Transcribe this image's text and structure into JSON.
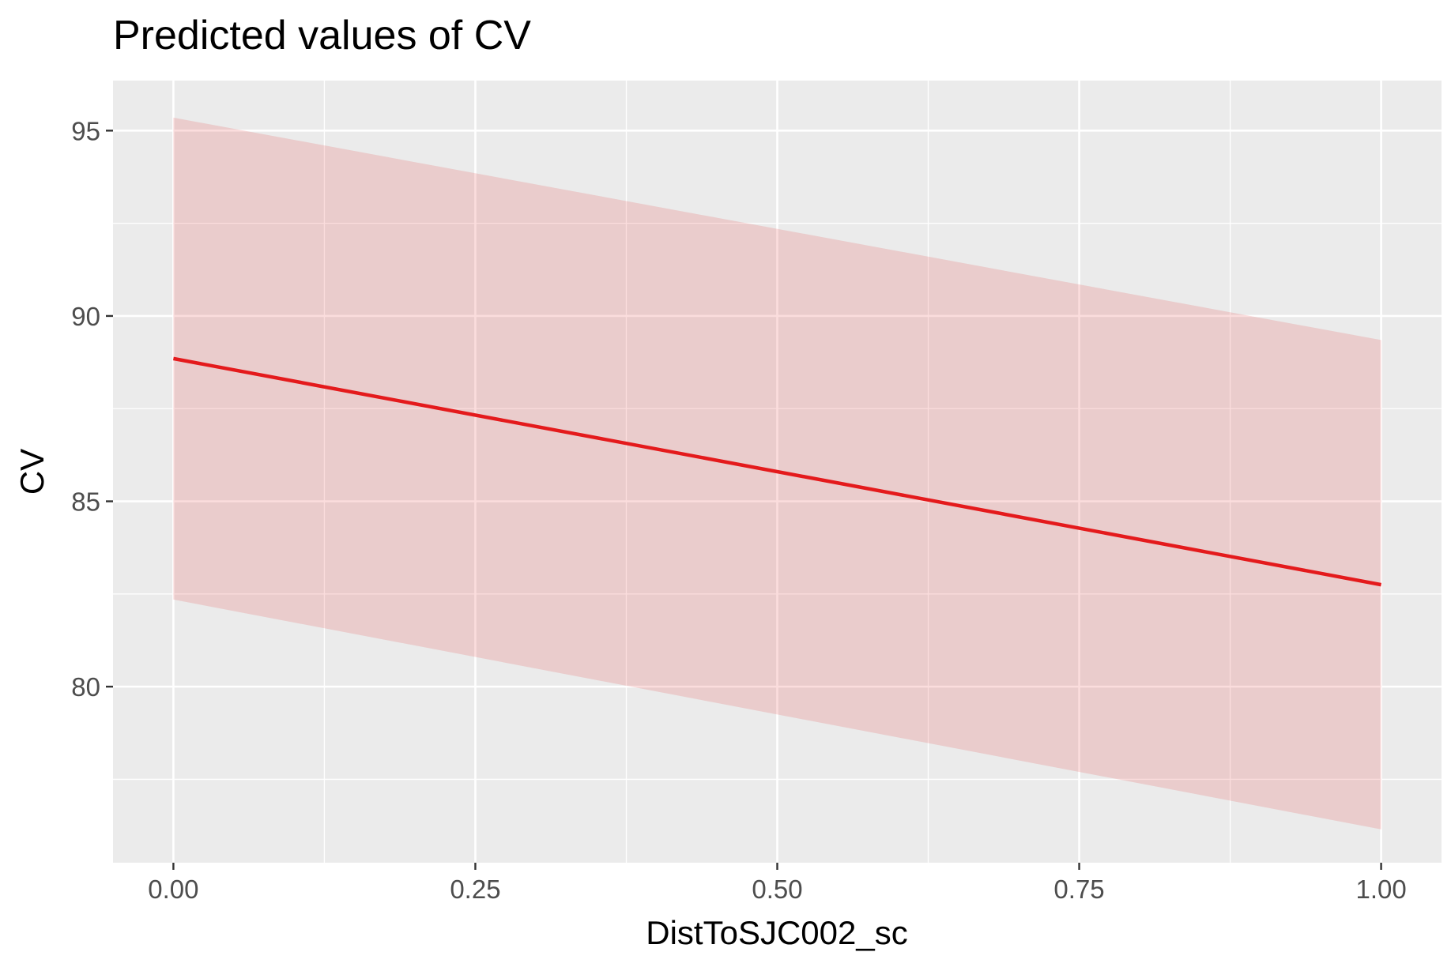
{
  "chart_data": {
    "type": "line",
    "title": "Predicted values of CV",
    "xlabel": "DistToSJC002_sc",
    "ylabel": "CV",
    "xlim": [
      -0.05,
      1.05
    ],
    "ylim": [
      75.25,
      96.35
    ],
    "x_ticks": [
      0,
      0.25,
      0.5,
      0.75,
      1
    ],
    "x_tick_labels": [
      "0.00",
      "0.25",
      "0.50",
      "0.75",
      "1.00"
    ],
    "x_minor_ticks": [
      0.125,
      0.375,
      0.625,
      0.875
    ],
    "y_ticks": [
      80,
      85,
      90,
      95
    ],
    "y_tick_labels": [
      "80",
      "85",
      "90",
      "95"
    ],
    "y_minor_ticks": [
      77.5,
      82.5,
      87.5,
      92.5
    ],
    "grid": true,
    "legend": "none",
    "series": [
      {
        "x": [
          0,
          1
        ],
        "values": [
          88.85,
          82.75
        ],
        "ci_lower": [
          82.35,
          76.15
        ],
        "ci_upper": [
          95.35,
          89.35
        ],
        "color": "#e41a1c",
        "ribbon_color": "#e41a1c"
      }
    ],
    "panel_background": "#ebebeb",
    "grid_color": "#ffffff"
  }
}
